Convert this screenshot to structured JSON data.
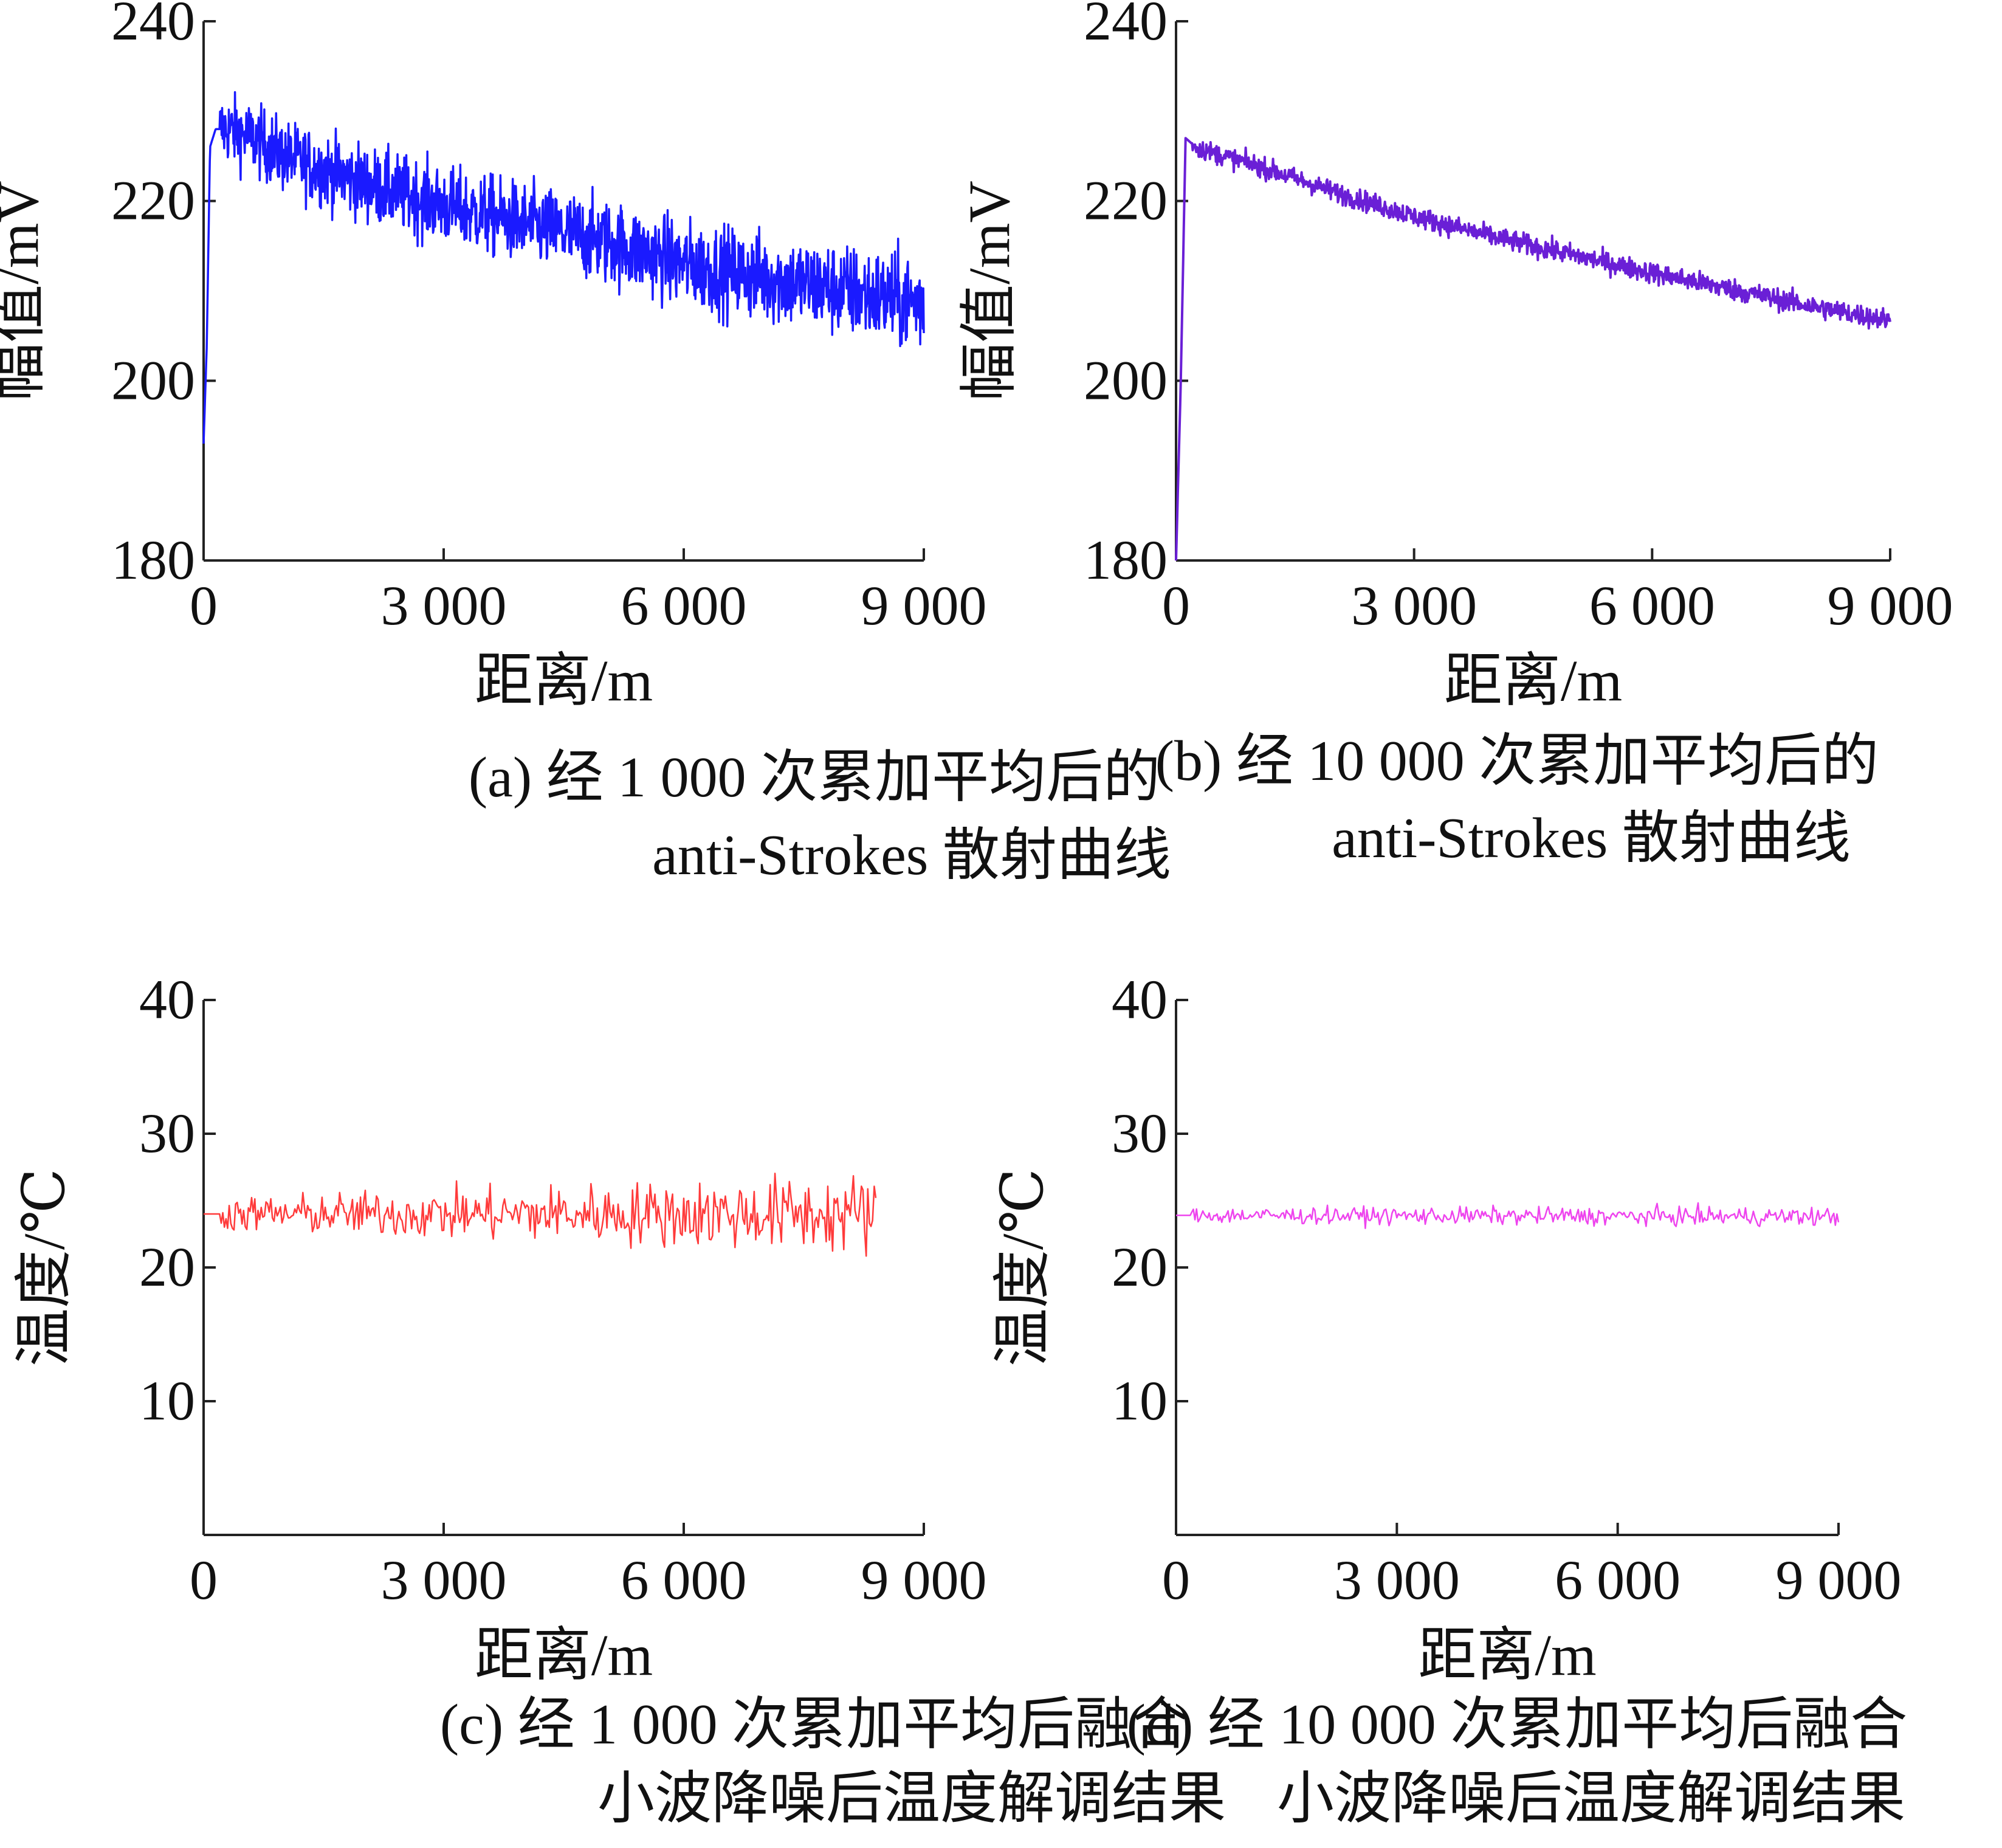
{
  "chart_data": [
    {
      "id": "a",
      "type": "line",
      "caption": [
        "(a) 经 1 000 次累加平均后的",
        "anti-Strokes 散射曲线"
      ],
      "xlabel": "距离/m",
      "ylabel": "幅值/mV",
      "xlim": [
        0,
        9000
      ],
      "ylim": [
        180,
        240
      ],
      "xticks": [
        0,
        3000,
        6000,
        9000
      ],
      "xtick_labels": [
        "0",
        "3 000",
        "6 000",
        "9 000"
      ],
      "yticks": [
        180,
        200,
        220,
        240
      ],
      "ytick_labels": [
        "180",
        "200",
        "220",
        "240"
      ],
      "color": "#1a1aff",
      "noise": 1.9,
      "noise_growth": 0.4,
      "series": [
        {
          "x": [
            0,
            40,
            80,
            150,
            300,
            600,
            1000,
            1500,
            2000,
            3000,
            4000,
            5000,
            6000,
            7000,
            8000,
            9000
          ],
          "y": [
            193,
            204,
            226,
            228,
            228,
            227,
            225,
            223.5,
            222,
            219.5,
            217.5,
            215.5,
            213,
            211.5,
            210,
            208.5
          ]
        }
      ]
    },
    {
      "id": "b",
      "type": "line",
      "caption": [
        "(b) 经 10 000 次累加平均后的",
        "anti-Strokes 散射曲线"
      ],
      "xlabel": "距离/m",
      "ylabel": "幅值/mV",
      "xlim": [
        0,
        9000
      ],
      "ylim": [
        180,
        240
      ],
      "xticks": [
        0,
        3000,
        6000,
        9000
      ],
      "xtick_labels": [
        "0",
        "3 000",
        "6 000",
        "9 000"
      ],
      "yticks": [
        180,
        200,
        220,
        240
      ],
      "ytick_labels": [
        "180",
        "200",
        "220",
        "240"
      ],
      "color": "#6a1fd6",
      "noise": 0.55,
      "noise_growth": 0.1,
      "series": [
        {
          "x": [
            0,
            60,
            120,
            250,
            600,
            1000,
            2000,
            3000,
            4000,
            5000,
            6000,
            7000,
            8000,
            9000
          ],
          "y": [
            180,
            200,
            227,
            226,
            225,
            224,
            221,
            218.3,
            216,
            214,
            212,
            210.2,
            208.3,
            206.7
          ]
        }
      ]
    },
    {
      "id": "c",
      "type": "line",
      "caption": [
        "(c) 经 1 000 次累加平均后融合",
        "小波降噪后温度解调结果"
      ],
      "xlabel": "距离/m",
      "ylabel": "温度/℃",
      "xlim": [
        0,
        9000
      ],
      "ylim": [
        0,
        40
      ],
      "xticks": [
        0,
        3000,
        6000,
        9000
      ],
      "xtick_labels": [
        "0",
        "3 000",
        "6 000",
        "9 000"
      ],
      "yticks": [
        10,
        20,
        30,
        40
      ],
      "ytick_labels": [
        "10",
        "20",
        "30",
        "40"
      ],
      "color": "#ff3b3b",
      "noise": 0.6,
      "noise_growth": 1.6,
      "series": [
        {
          "x": [
            0,
            8400
          ],
          "y": [
            24,
            24
          ]
        }
      ]
    },
    {
      "id": "d",
      "type": "line",
      "caption": [
        "(d) 经 10 000 次累加平均后融合",
        "小波降噪后温度解调结果"
      ],
      "xlabel": "距离/m",
      "ylabel": "温度/℃",
      "xlim": [
        0,
        9000
      ],
      "ylim": [
        0,
        40
      ],
      "xticks": [
        0,
        3000,
        6000,
        9000
      ],
      "xtick_labels": [
        "0",
        "3 000",
        "6 000",
        "9 000"
      ],
      "yticks": [
        10,
        20,
        30,
        40
      ],
      "ytick_labels": [
        "10",
        "20",
        "30",
        "40"
      ],
      "color": "#ee44ee",
      "noise": 0.3,
      "noise_growth": 0.15,
      "series": [
        {
          "x": [
            0,
            9000
          ],
          "y": [
            23.9,
            23.8
          ]
        }
      ]
    }
  ]
}
